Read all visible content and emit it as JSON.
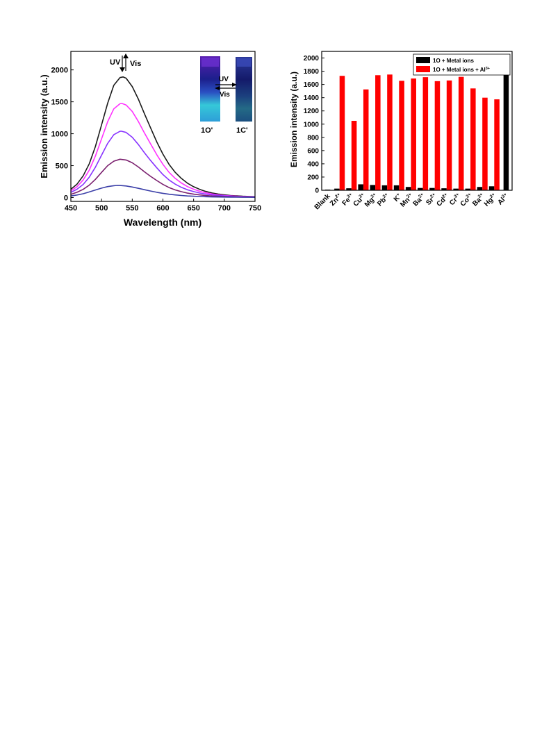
{
  "chart_data": [
    {
      "type": "line",
      "xlabel": "Wavelength (nm)",
      "ylabel": "Emission intensity (a.u.)",
      "xlim": [
        450,
        750
      ],
      "ylim": [
        -60,
        2290
      ],
      "xticks": [
        450,
        500,
        550,
        600,
        650,
        700,
        750
      ],
      "yticks": [
        0,
        500,
        1000,
        1500,
        2000
      ],
      "grid": false,
      "series": [
        {
          "color": "#1a1a1a",
          "peak_x": 535,
          "peak_y": 1890,
          "x": [
            450,
            460,
            470,
            480,
            490,
            500,
            510,
            520,
            530,
            535,
            540,
            550,
            560,
            570,
            580,
            590,
            600,
            610,
            620,
            630,
            640,
            650,
            660,
            670,
            680,
            690,
            700,
            710,
            720,
            730,
            740,
            750
          ],
          "y": [
            130,
            210,
            340,
            530,
            800,
            1140,
            1480,
            1760,
            1880,
            1890,
            1870,
            1740,
            1540,
            1310,
            1090,
            870,
            680,
            520,
            395,
            300,
            225,
            170,
            128,
            96,
            72,
            55,
            42,
            33,
            26,
            21,
            17,
            14
          ]
        },
        {
          "color": "#ff33ff",
          "peak_x": 533,
          "peak_y": 1475,
          "x": [
            450,
            460,
            470,
            480,
            490,
            500,
            510,
            520,
            530,
            533,
            540,
            550,
            560,
            570,
            580,
            590,
            600,
            610,
            620,
            630,
            640,
            650,
            660,
            670,
            680,
            690,
            700,
            710,
            720,
            730,
            740,
            750
          ],
          "y": [
            105,
            170,
            275,
            430,
            650,
            920,
            1190,
            1390,
            1470,
            1475,
            1450,
            1350,
            1190,
            1010,
            840,
            670,
            520,
            395,
            300,
            228,
            172,
            130,
            98,
            74,
            56,
            43,
            33,
            26,
            21,
            17,
            14,
            12
          ]
        },
        {
          "color": "#8833ff",
          "peak_x": 532,
          "peak_y": 1040,
          "x": [
            450,
            460,
            470,
            480,
            490,
            500,
            510,
            520,
            530,
            532,
            540,
            550,
            560,
            570,
            580,
            590,
            600,
            610,
            620,
            630,
            640,
            650,
            660,
            670,
            680,
            690,
            700,
            710,
            720,
            730,
            740,
            750
          ],
          "y": [
            80,
            130,
            205,
            320,
            475,
            665,
            850,
            985,
            1038,
            1040,
            1020,
            945,
            830,
            700,
            580,
            465,
            360,
            275,
            210,
            160,
            122,
            93,
            71,
            54,
            41,
            32,
            25,
            20,
            16,
            13,
            11,
            10
          ]
        },
        {
          "color": "#7a1f6e",
          "peak_x": 530,
          "peak_y": 600,
          "x": [
            450,
            460,
            470,
            480,
            490,
            500,
            510,
            520,
            530,
            540,
            550,
            560,
            570,
            580,
            590,
            600,
            610,
            620,
            630,
            640,
            650,
            660,
            670,
            680,
            690,
            700,
            710,
            720,
            730,
            740,
            750
          ],
          "y": [
            50,
            82,
            128,
            195,
            285,
            395,
            500,
            570,
            600,
            588,
            545,
            478,
            402,
            332,
            266,
            206,
            157,
            120,
            92,
            70,
            53,
            41,
            31,
            24,
            19,
            15,
            12,
            10,
            8,
            7,
            6
          ]
        },
        {
          "color": "#3b3fa8",
          "peak_x": 525,
          "peak_y": 190,
          "x": [
            450,
            460,
            470,
            480,
            490,
            500,
            510,
            520,
            525,
            530,
            540,
            550,
            560,
            570,
            580,
            590,
            600,
            610,
            620,
            630,
            640,
            650,
            660,
            670,
            680,
            690,
            700,
            710,
            720,
            730,
            740,
            750
          ],
          "y": [
            25,
            40,
            60,
            88,
            118,
            148,
            172,
            186,
            190,
            189,
            181,
            165,
            145,
            123,
            102,
            83,
            66,
            52,
            41,
            32,
            25,
            20,
            16,
            13,
            10,
            8,
            7,
            6,
            5,
            4,
            4,
            3
          ]
        }
      ],
      "annotations": {
        "uv": "UV",
        "vis": "Vis",
        "inset_uv": "UV",
        "inset_vis": "Vis",
        "vial_left": "1O'",
        "vial_right": "1C'"
      }
    },
    {
      "type": "bar",
      "ylabel": "Emission intensity (a.u.)",
      "ylim": [
        0,
        2100
      ],
      "yticks": [
        0,
        200,
        400,
        600,
        800,
        1000,
        1200,
        1400,
        1600,
        1800,
        2000
      ],
      "grid": false,
      "legend_position": "top-right",
      "categories": [
        {
          "base": "Blank",
          "sup": ""
        },
        {
          "base": "Zn",
          "sup": "2+"
        },
        {
          "base": "Fe",
          "sup": "3+"
        },
        {
          "base": "Cu",
          "sup": "2+"
        },
        {
          "base": "Mg",
          "sup": "2+"
        },
        {
          "base": "Pb",
          "sup": "2+"
        },
        {
          "base": "K",
          "sup": "+"
        },
        {
          "base": "Mn",
          "sup": "2+"
        },
        {
          "base": "Ba",
          "sup": "2+"
        },
        {
          "base": "Sr",
          "sup": "2+"
        },
        {
          "base": "Cd",
          "sup": "2+"
        },
        {
          "base": "Cr",
          "sup": "3+"
        },
        {
          "base": "Co",
          "sup": "2+"
        },
        {
          "base": "Ba",
          "sup": "2+"
        },
        {
          "base": "Hg",
          "sup": "2+"
        },
        {
          "base": "Al",
          "sup": "3+"
        }
      ],
      "series": [
        {
          "name": "1O + Metal ions",
          "name_sup": "",
          "color": "#000000",
          "values": [
            10,
            25,
            30,
            90,
            80,
            75,
            75,
            50,
            35,
            35,
            30,
            25,
            25,
            50,
            60,
            1760
          ]
        },
        {
          "name": "1O + Metal ions + Al",
          "name_sup": "3+",
          "color": "#ff0000",
          "values": [
            null,
            1730,
            1050,
            1525,
            1740,
            1750,
            1655,
            1690,
            1710,
            1650,
            1660,
            1715,
            1540,
            1400,
            1375,
            null
          ]
        }
      ]
    }
  ]
}
